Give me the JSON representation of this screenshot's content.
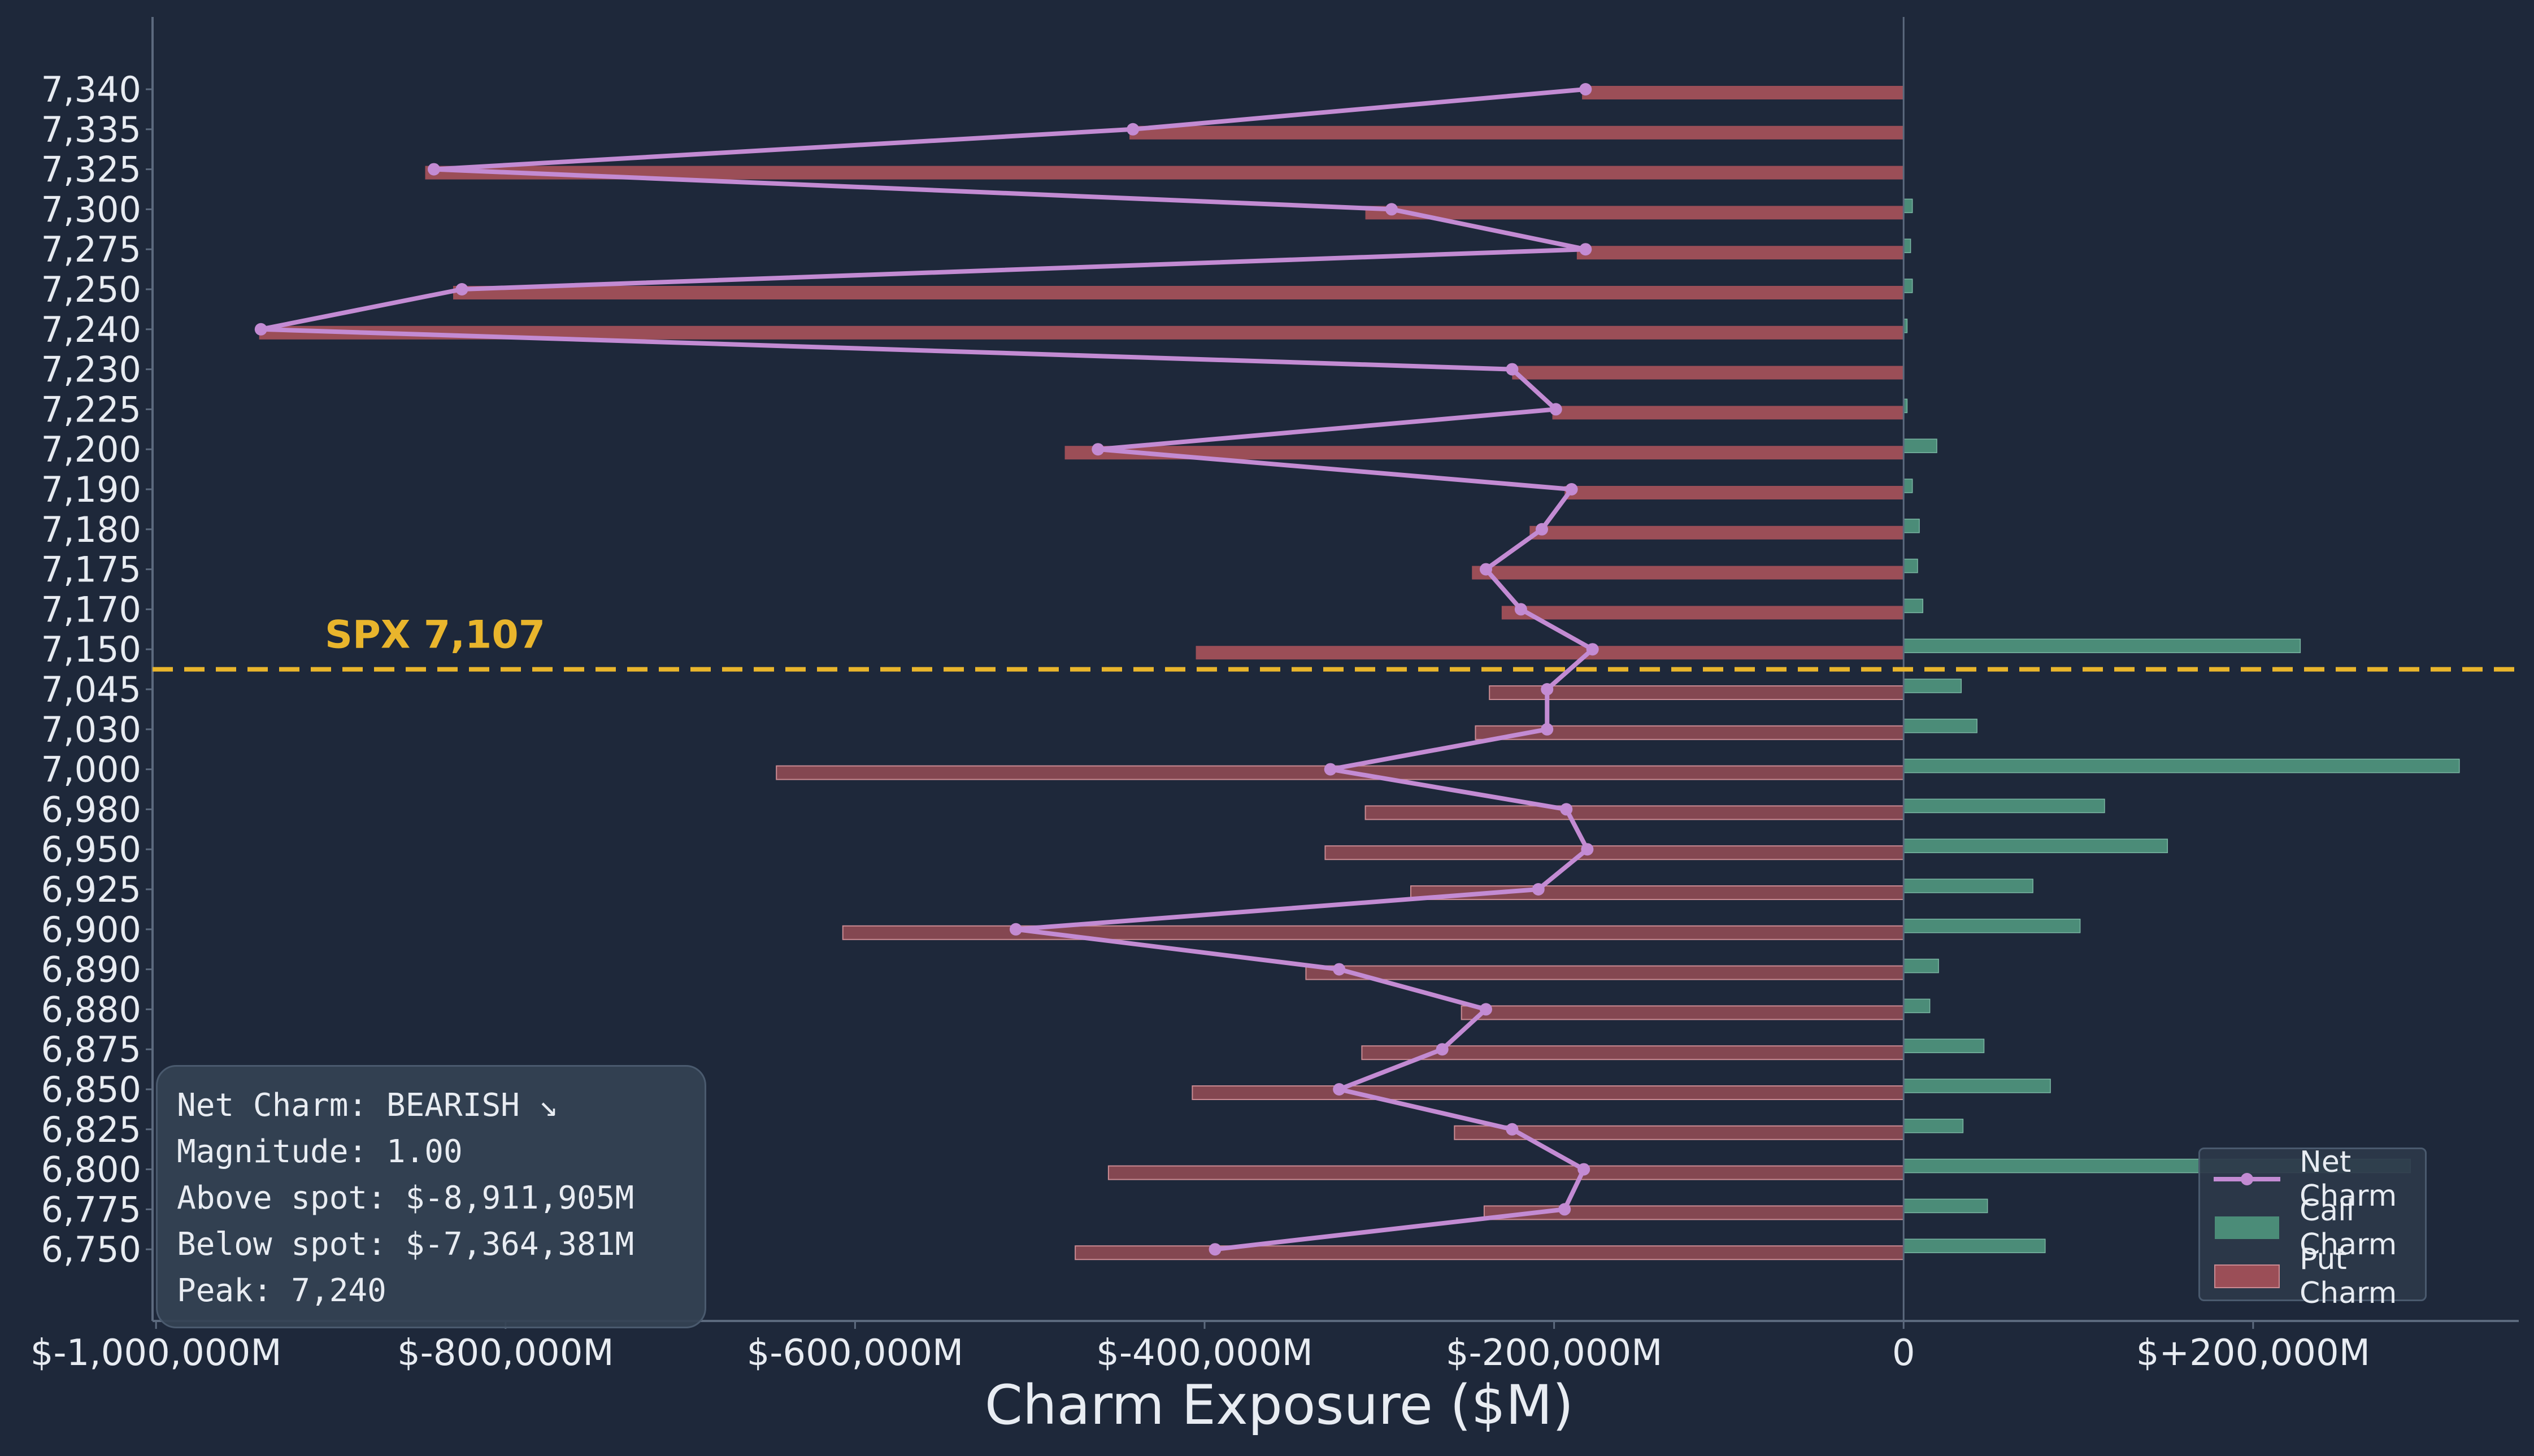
{
  "colors": {
    "background": "#1e283a",
    "net": "#c38bd3",
    "call": "#4b8c78",
    "put": "#9b4e57",
    "spot_line": "#e9b52c",
    "text": "#e8ecf2",
    "axis": "#5c6a7e"
  },
  "chart_data": {
    "type": "bar",
    "orientation": "horizontal",
    "xlabel": "Charm Exposure ($M)",
    "x_ticks": [
      -1000000,
      -800000,
      -600000,
      -400000,
      -200000,
      0,
      200000
    ],
    "x_tick_labels": [
      "$-1,000,000M",
      "$-800,000M",
      "$-600,000M",
      "$-400,000M",
      "$-200,000M",
      "0",
      "$+200,000M"
    ],
    "xlim": [
      -1002000,
      352000
    ],
    "categories": [
      "7,340",
      "7,335",
      "7,325",
      "7,300",
      "7,275",
      "7,250",
      "7,240",
      "7,230",
      "7,225",
      "7,200",
      "7,190",
      "7,180",
      "7,175",
      "7,170",
      "7,150",
      "7,045",
      "7,030",
      "7,000",
      "6,980",
      "6,950",
      "6,925",
      "6,900",
      "6,890",
      "6,880",
      "6,875",
      "6,850",
      "6,825",
      "6,800",
      "6,775",
      "6,750"
    ],
    "series": [
      {
        "name": "Net Charm",
        "type": "line",
        "values": [
          -182000,
          -441000,
          -841000,
          -293000,
          -182000,
          -825000,
          -940000,
          -224000,
          -199000,
          -461000,
          -190000,
          -207000,
          -239000,
          -219000,
          -178000,
          -204000,
          -204000,
          -328000,
          -193000,
          -181000,
          -209000,
          -508000,
          -323000,
          -239000,
          -264000,
          -323000,
          -224000,
          -183000,
          -194000,
          -394000
        ]
      },
      {
        "name": "Call Charm",
        "type": "bar",
        "values": [
          0,
          0,
          0,
          5000,
          4000,
          5000,
          2000,
          0,
          2000,
          19000,
          5000,
          9000,
          8000,
          11000,
          227000,
          33000,
          42000,
          318000,
          115000,
          151000,
          74000,
          101000,
          20000,
          15000,
          46000,
          84000,
          34000,
          290000,
          48000,
          81000
        ]
      },
      {
        "name": "Put Charm",
        "type": "bar",
        "values": [
          -184000,
          -443000,
          -846000,
          -308000,
          -187000,
          -830000,
          -941000,
          -224000,
          -201000,
          -480000,
          -194000,
          -214000,
          -247000,
          -230000,
          -405000,
          -237000,
          -245000,
          -645000,
          -308000,
          -331000,
          -282000,
          -607000,
          -342000,
          -253000,
          -310000,
          -407000,
          -257000,
          -455000,
          -240000,
          -474000
        ]
      }
    ],
    "spot": {
      "label": "SPX 7,107",
      "between": [
        "7,150",
        "7,045"
      ]
    },
    "grid": false,
    "legend_position": "lower-right"
  },
  "stats": {
    "line1": "Net Charm: BEARISH ↘",
    "line2": "Magnitude: 1.00",
    "line3": "Above spot: $-8,911,905M",
    "line4": "Below spot: $-7,364,381M",
    "line5": "Peak: 7,240"
  }
}
